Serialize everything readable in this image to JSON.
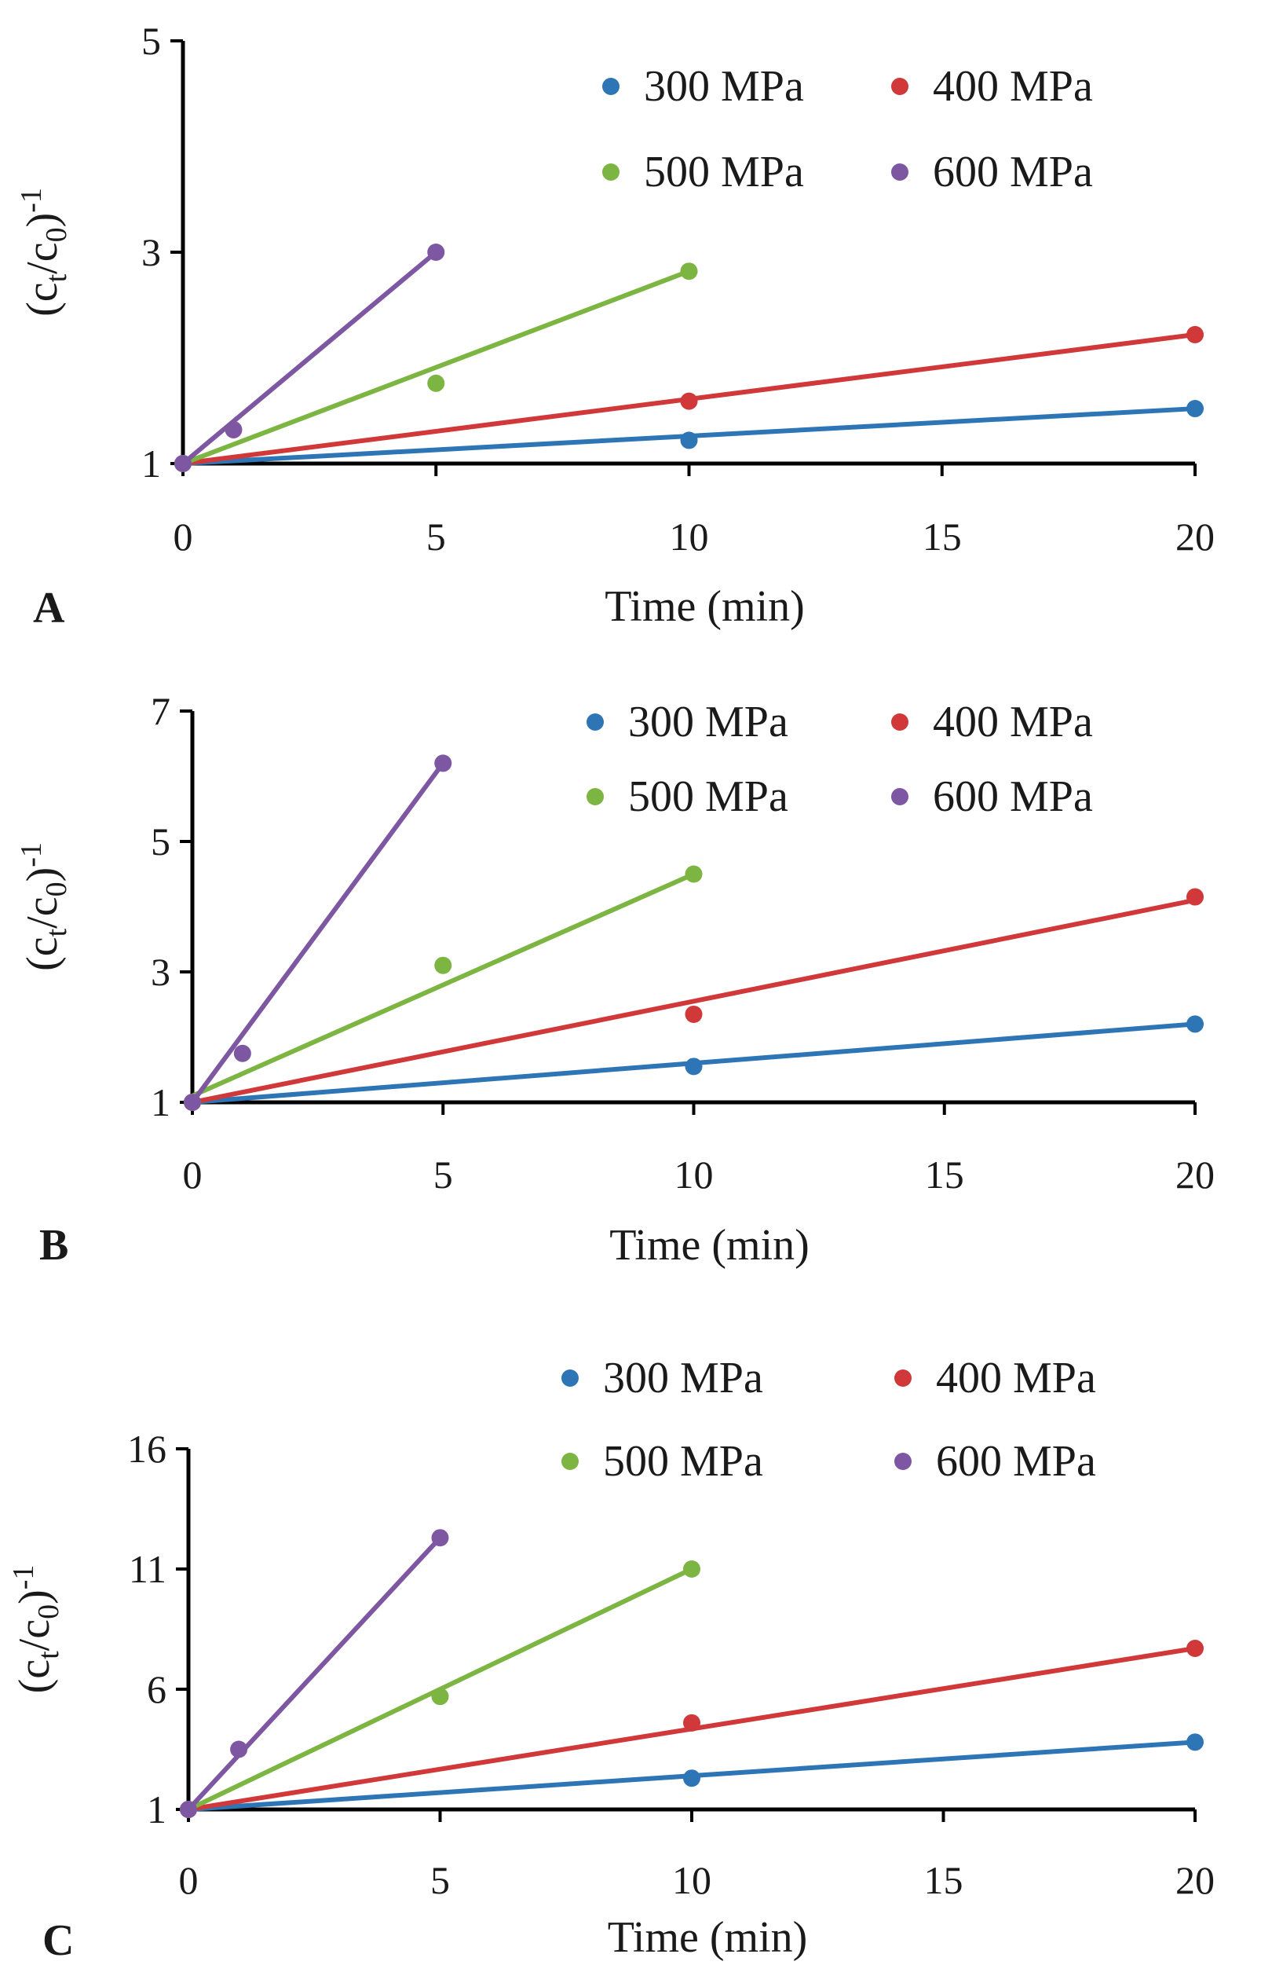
{
  "chart_data": [
    {
      "type": "scatter",
      "panel_label": "A",
      "xlabel": "Time (min)",
      "ylabel": "(ct/c0)-1",
      "xlim": [
        0,
        20
      ],
      "ylim": [
        1,
        5
      ],
      "xticks": [
        "0",
        "5",
        "10",
        "15",
        "20"
      ],
      "yticks": [
        "1",
        "3",
        "5"
      ],
      "legend": [
        "300 MPa",
        "400 MPa",
        "500 MPa",
        "600 MPa"
      ],
      "series": [
        {
          "name": "300 MPa",
          "color": "#2E75B6",
          "x": [
            0,
            10,
            20
          ],
          "y": [
            1.0,
            1.22,
            1.52
          ],
          "fit": [
            [
              0,
              1.0
            ],
            [
              20,
              1.52
            ]
          ]
        },
        {
          "name": "400 MPa",
          "color": "#D0383A",
          "x": [
            0,
            10,
            20
          ],
          "y": [
            1.0,
            1.59,
            2.22
          ],
          "fit": [
            [
              0,
              1.0
            ],
            [
              20,
              2.22
            ]
          ]
        },
        {
          "name": "500 MPa",
          "color": "#7DB543",
          "x": [
            0,
            5,
            10
          ],
          "y": [
            1.0,
            1.76,
            2.82
          ],
          "fit": [
            [
              0,
              1.0
            ],
            [
              10,
              2.82
            ]
          ]
        },
        {
          "name": "600 MPa",
          "color": "#7E57A3",
          "x": [
            0,
            1,
            5
          ],
          "y": [
            1.0,
            1.32,
            3.0
          ],
          "fit": [
            [
              0,
              1.0
            ],
            [
              5,
              3.0
            ]
          ]
        }
      ]
    },
    {
      "type": "scatter",
      "panel_label": "B",
      "xlabel": "Time (min)",
      "ylabel": "(ct/c0)-1",
      "xlim": [
        0,
        20
      ],
      "ylim": [
        1,
        7
      ],
      "xticks": [
        "0",
        "5",
        "10",
        "15",
        "20"
      ],
      "yticks": [
        "1",
        "3",
        "5",
        "7"
      ],
      "legend": [
        "300 MPa",
        "400 MPa",
        "500 MPa",
        "600 MPa"
      ],
      "series": [
        {
          "name": "300 MPa",
          "color": "#2E75B6",
          "x": [
            0,
            10,
            20
          ],
          "y": [
            1.0,
            1.55,
            2.2
          ],
          "fit": [
            [
              0,
              1.0
            ],
            [
              20,
              2.2
            ]
          ]
        },
        {
          "name": "400 MPa",
          "color": "#D0383A",
          "x": [
            0,
            10,
            20
          ],
          "y": [
            1.0,
            2.35,
            4.15
          ],
          "fit": [
            [
              0,
              1.0
            ],
            [
              20,
              4.1
            ]
          ]
        },
        {
          "name": "500 MPa",
          "color": "#7DB543",
          "x": [
            0,
            5,
            10
          ],
          "y": [
            1.0,
            3.1,
            4.5
          ],
          "fit": [
            [
              0,
              1.1
            ],
            [
              10,
              4.5
            ]
          ]
        },
        {
          "name": "600 MPa",
          "color": "#7E57A3",
          "x": [
            0,
            1,
            5
          ],
          "y": [
            1.0,
            1.75,
            6.2
          ],
          "fit": [
            [
              0,
              1.0
            ],
            [
              5,
              6.2
            ]
          ]
        }
      ]
    },
    {
      "type": "scatter",
      "panel_label": "C",
      "xlabel": "Time (min)",
      "ylabel": "(ct/c0)-1",
      "xlim": [
        0,
        20
      ],
      "ylim": [
        1,
        16
      ],
      "xticks": [
        "0",
        "5",
        "10",
        "15",
        "20"
      ],
      "yticks": [
        "1",
        "6",
        "11",
        "16"
      ],
      "legend": [
        "300 MPa",
        "400 MPa",
        "500 MPa",
        "600 MPa"
      ],
      "series": [
        {
          "name": "300 MPa",
          "color": "#2E75B6",
          "x": [
            0,
            10,
            20
          ],
          "y": [
            1.0,
            2.3,
            3.8
          ],
          "fit": [
            [
              0,
              1.0
            ],
            [
              20,
              3.8
            ]
          ]
        },
        {
          "name": "400 MPa",
          "color": "#D0383A",
          "x": [
            0,
            10,
            20
          ],
          "y": [
            1.0,
            4.6,
            7.7
          ],
          "fit": [
            [
              0,
              1.0
            ],
            [
              20,
              7.7
            ]
          ]
        },
        {
          "name": "500 MPa",
          "color": "#7DB543",
          "x": [
            0,
            5,
            10
          ],
          "y": [
            1.0,
            5.7,
            11.0
          ],
          "fit": [
            [
              0,
              1.0
            ],
            [
              10,
              11.0
            ]
          ]
        },
        {
          "name": "600 MPa",
          "color": "#7E57A3",
          "x": [
            0,
            1,
            5
          ],
          "y": [
            1.0,
            3.5,
            12.3
          ],
          "fit": [
            [
              0,
              1.0
            ],
            [
              5,
              12.3
            ]
          ]
        }
      ]
    }
  ]
}
